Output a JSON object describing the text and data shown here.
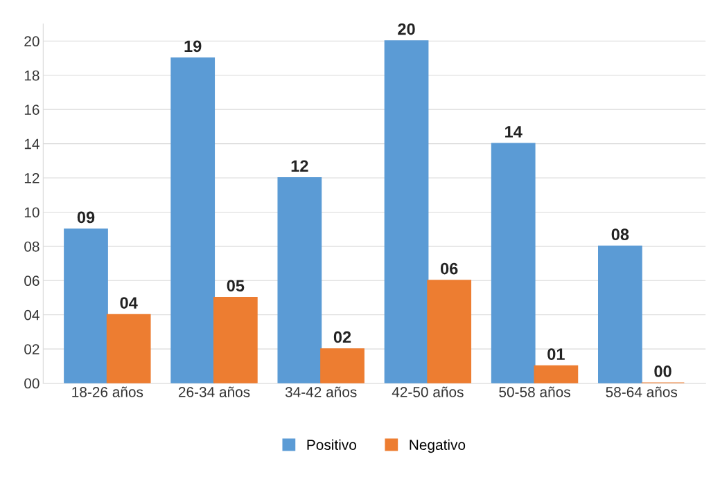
{
  "chart_data": {
    "type": "bar",
    "categories": [
      "18-26 años",
      "26-34 años",
      "34-42 años",
      "42-50 años",
      "50-58 años",
      "58-64 años"
    ],
    "series": [
      {
        "name": "Positivo",
        "color": "#5b9bd5",
        "values": [
          9,
          19,
          12,
          20,
          14,
          8
        ],
        "value_labels": [
          "09",
          "19",
          "12",
          "20",
          "14",
          "08"
        ]
      },
      {
        "name": "Negativo",
        "color": "#ed7d31",
        "values": [
          4,
          5,
          2,
          6,
          1,
          0
        ],
        "value_labels": [
          "04",
          "05",
          "02",
          "06",
          "01",
          "00"
        ]
      }
    ],
    "ylim": [
      0,
      21
    ],
    "yticks": [
      {
        "value": 0,
        "label": "00"
      },
      {
        "value": 2,
        "label": "02"
      },
      {
        "value": 4,
        "label": "04"
      },
      {
        "value": 6,
        "label": "06"
      },
      {
        "value": 8,
        "label": "08"
      },
      {
        "value": 10,
        "label": "10"
      },
      {
        "value": 12,
        "label": "12"
      },
      {
        "value": 14,
        "label": "14"
      },
      {
        "value": 16,
        "label": "16"
      },
      {
        "value": 18,
        "label": "18"
      },
      {
        "value": 20,
        "label": "20"
      }
    ],
    "grid": "y",
    "legend": "bottom"
  }
}
